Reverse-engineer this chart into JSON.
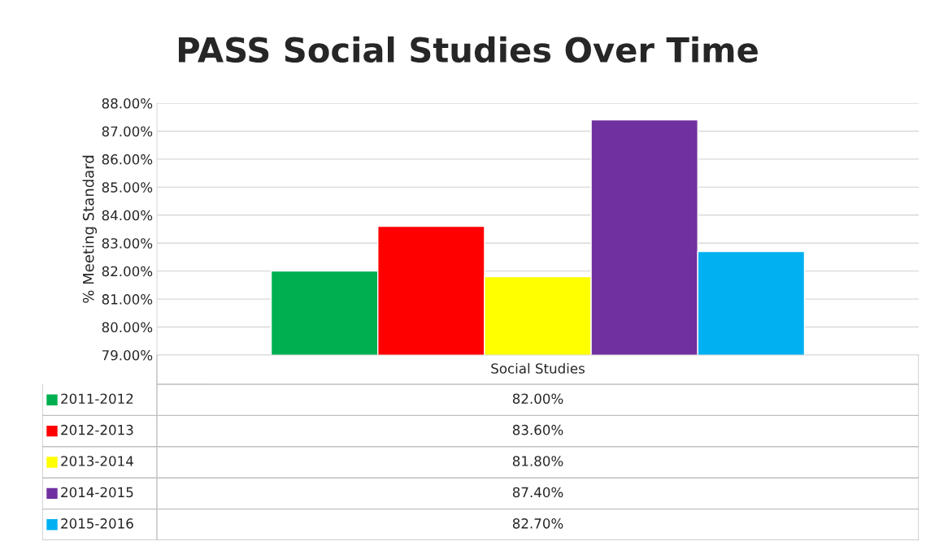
{
  "chart_data": {
    "type": "bar",
    "title": "PASS Social Studies Over Time",
    "ylabel": "% Meeting Standard",
    "categories": [
      "Social Studies"
    ],
    "series": [
      {
        "name": "2011-2012",
        "color": "#00b050",
        "values": [
          82.0
        ]
      },
      {
        "name": "2012-2013",
        "color": "#ff0000",
        "values": [
          83.6
        ]
      },
      {
        "name": "2013-2014",
        "color": "#ffff00",
        "values": [
          81.8
        ]
      },
      {
        "name": "2014-2015",
        "color": "#7030a0",
        "values": [
          87.4
        ]
      },
      {
        "name": "2015-2016",
        "color": "#00b0f0",
        "values": [
          82.7
        ]
      }
    ],
    "value_labels": [
      [
        "82.00%"
      ],
      [
        "83.60%"
      ],
      [
        "81.80%"
      ],
      [
        "87.40%"
      ],
      [
        "82.70%"
      ]
    ],
    "ylim": [
      79,
      88
    ],
    "yticks": [
      {
        "value": 79,
        "label": "79.00%"
      },
      {
        "value": 80,
        "label": "80.00%"
      },
      {
        "value": 81,
        "label": "81.00%"
      },
      {
        "value": 82,
        "label": "82.00%"
      },
      {
        "value": 83,
        "label": "83.00%"
      },
      {
        "value": 84,
        "label": "84.00%"
      },
      {
        "value": 85,
        "label": "85.00%"
      },
      {
        "value": 86,
        "label": "86.00%"
      },
      {
        "value": 87,
        "label": "87.00%"
      },
      {
        "value": 88,
        "label": "88.00%"
      }
    ],
    "grid": "y",
    "legend": "bottom"
  }
}
